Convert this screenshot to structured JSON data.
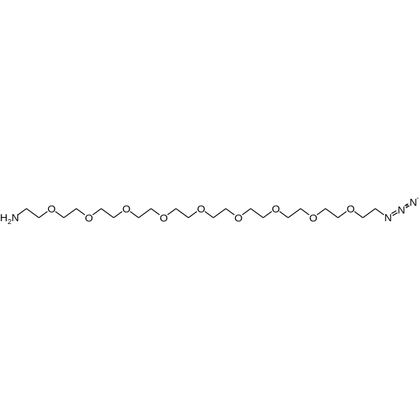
{
  "molecule": {
    "terminal_left": {
      "label": "H",
      "subscript": "2",
      "atom": "N"
    },
    "ether_oxygen_label": "O",
    "ether_oxygen_count": 9,
    "azide": {
      "n1": "N",
      "n2": "N",
      "n2_charge": "+",
      "n3": "N",
      "n3_charge": "-"
    },
    "bond_color": "#000000",
    "background": "#ffffff"
  }
}
